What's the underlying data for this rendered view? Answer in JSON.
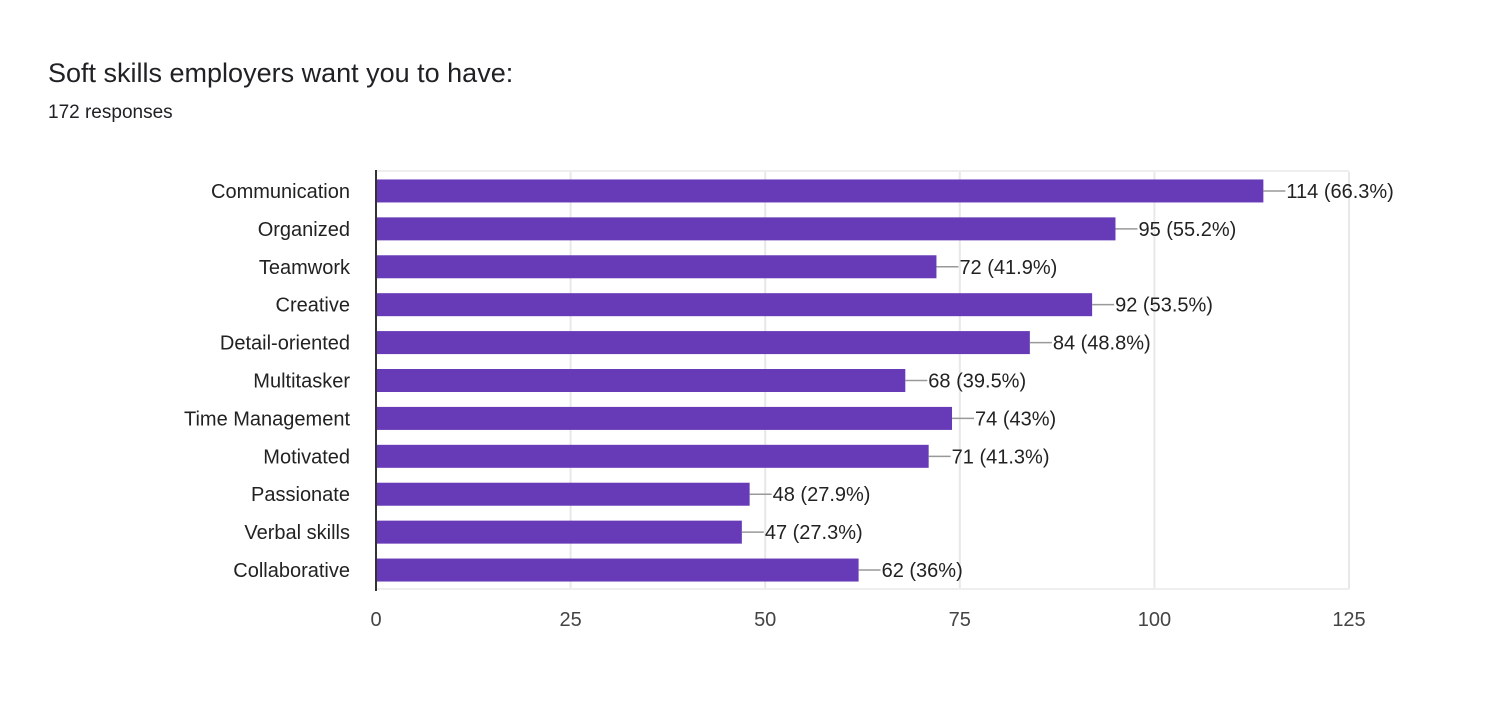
{
  "chart_data": {
    "type": "bar",
    "orientation": "horizontal",
    "title": "Soft skills employers want you to have:",
    "subtitle": "172 responses",
    "categories": [
      "Communication",
      "Organized",
      "Teamwork",
      "Creative",
      "Detail-oriented",
      "Multitasker",
      "Time Management",
      "Motivated",
      "Passionate",
      "Verbal skills",
      "Collaborative"
    ],
    "values": [
      114,
      95,
      72,
      92,
      84,
      68,
      74,
      71,
      48,
      47,
      62
    ],
    "data_labels": [
      "114 (66.3%)",
      "95 (55.2%)",
      "72 (41.9%)",
      "92 (53.5%)",
      "84 (48.8%)",
      "68 (39.5%)",
      "74 (43%)",
      "71 (41.3%)",
      "48 (27.9%)",
      "47 (27.3%)",
      "62 (36%)"
    ],
    "xlim": [
      0,
      125
    ],
    "x_ticks": [
      "0",
      "25",
      "50",
      "75",
      "100",
      "125"
    ],
    "grid": true,
    "bar_color": "#673ab7"
  }
}
